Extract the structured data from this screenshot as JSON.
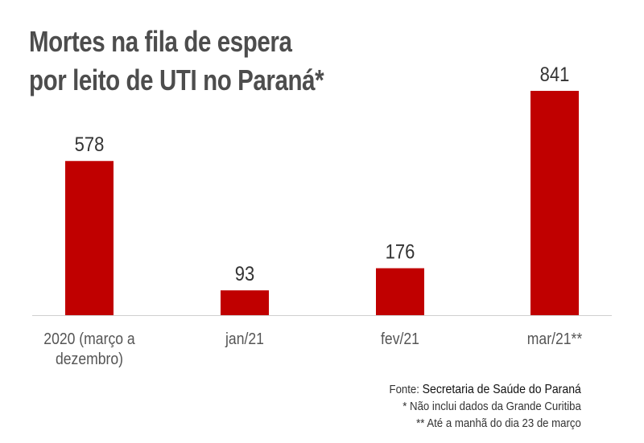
{
  "chart_data": {
    "type": "bar",
    "title_lines": [
      "Mortes na fila de espera",
      "por leito de UTI no Paraná*"
    ],
    "categories": [
      [
        "2020 (março a",
        "dezembro)"
      ],
      [
        "jan/21"
      ],
      [
        "fev/21"
      ],
      [
        "mar/21**"
      ]
    ],
    "values": [
      578,
      93,
      176,
      841
    ],
    "value_labels": [
      "578",
      "93",
      "176",
      "841"
    ],
    "xlabel": "",
    "ylabel": "",
    "ylim": [
      0,
      841
    ],
    "grid": false,
    "bar_color": "#c00000"
  },
  "notes": {
    "source_prefix": "Fonte:",
    "source": "Secretaria de Saúde do Paraná",
    "note1": "* Não inclui dados da Grande Curitiba",
    "note2": "** Até a manhã do dia 23 de março"
  }
}
